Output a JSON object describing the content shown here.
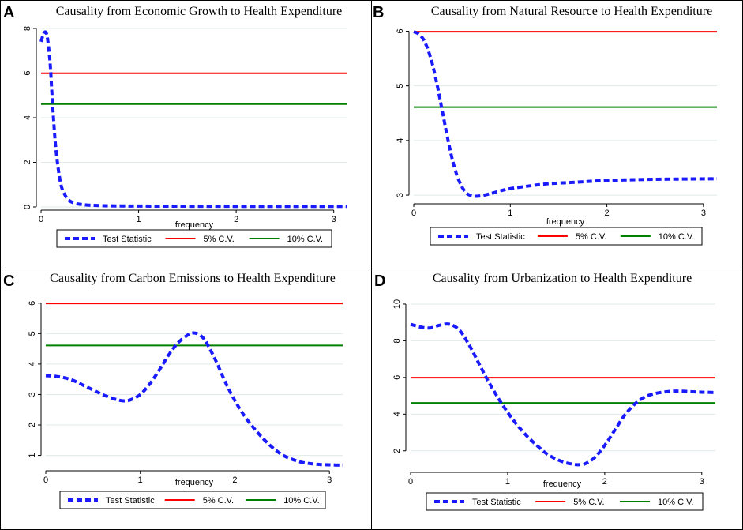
{
  "figure": {
    "colors": {
      "test_statistic": "#1a1aff",
      "cv5": "#ff0000",
      "cv10": "#008000",
      "grid": "#dfe9ea",
      "border": "#000000"
    }
  },
  "chart_data": [
    {
      "panel": "A",
      "type": "line",
      "title": "Causality from Economic Growth to Health Expenditure",
      "xlabel": "frequency",
      "ylabel": "",
      "xlim": [
        0,
        3.14
      ],
      "ylim": [
        0,
        8
      ],
      "xticks": [
        0,
        1,
        2,
        3
      ],
      "yticks": [
        0,
        2,
        4,
        6,
        8
      ],
      "legend": [
        "Test Statistic",
        "5% C.V.",
        "10% C.V."
      ],
      "series": [
        {
          "name": "Test Statistic",
          "style": "dashed",
          "x": [
            0,
            0.03,
            0.06,
            0.09,
            0.11,
            0.13,
            0.15,
            0.18,
            0.21,
            0.25,
            0.3,
            0.4,
            0.6,
            1.0,
            2.0,
            3.14
          ],
          "y": [
            7.4,
            7.8,
            7.7,
            6.6,
            5.2,
            3.8,
            2.7,
            1.6,
            0.9,
            0.5,
            0.25,
            0.12,
            0.06,
            0.04,
            0.03,
            0.03
          ]
        },
        {
          "name": "5% C.V.",
          "x": [
            0,
            3.14
          ],
          "y": [
            5.99,
            5.99
          ]
        },
        {
          "name": "10% C.V.",
          "x": [
            0,
            3.14
          ],
          "y": [
            4.61,
            4.61
          ]
        }
      ]
    },
    {
      "panel": "B",
      "type": "line",
      "title": "Causality from Natural Resource to Health Expenditure",
      "xlabel": "frequency",
      "ylabel": "",
      "xlim": [
        0,
        3.14
      ],
      "ylim": [
        2.9,
        6.05
      ],
      "xticks": [
        0,
        1,
        2,
        3
      ],
      "yticks": [
        3,
        4,
        5,
        6
      ],
      "legend": [
        "Test Statistic",
        "5% C.V.",
        "10% C.V."
      ],
      "series": [
        {
          "name": "Test Statistic",
          "style": "dashed",
          "x": [
            0,
            0.05,
            0.1,
            0.15,
            0.2,
            0.25,
            0.3,
            0.35,
            0.4,
            0.45,
            0.5,
            0.55,
            0.6,
            0.65,
            0.7,
            0.8,
            0.9,
            1.0,
            1.2,
            1.4,
            1.6,
            1.8,
            2.0,
            2.5,
            3.14
          ],
          "y": [
            5.99,
            5.95,
            5.85,
            5.65,
            5.35,
            4.95,
            4.5,
            4.05,
            3.65,
            3.35,
            3.15,
            3.03,
            2.99,
            2.98,
            2.99,
            3.03,
            3.08,
            3.12,
            3.17,
            3.21,
            3.23,
            3.25,
            3.27,
            3.29,
            3.3
          ]
        },
        {
          "name": "5% C.V.",
          "x": [
            0,
            3.14
          ],
          "y": [
            5.99,
            5.99
          ]
        },
        {
          "name": "10% C.V.",
          "x": [
            0,
            3.14
          ],
          "y": [
            4.61,
            4.61
          ]
        }
      ]
    },
    {
      "panel": "C",
      "type": "line",
      "title": "Causality from Carbon Emissions to Health Expenditure",
      "xlabel": "frequency",
      "ylabel": "",
      "xlim": [
        0,
        3.14
      ],
      "ylim": [
        0.6,
        6.15
      ],
      "xticks": [
        0,
        1,
        2,
        3
      ],
      "yticks": [
        1,
        2,
        3,
        4,
        5,
        6
      ],
      "legend": [
        "Test Statistic",
        "5% C.V.",
        "10% C.V."
      ],
      "series": [
        {
          "name": "Test Statistic",
          "style": "dashed",
          "x": [
            0,
            0.1,
            0.2,
            0.3,
            0.4,
            0.5,
            0.6,
            0.7,
            0.8,
            0.85,
            0.9,
            1.0,
            1.1,
            1.2,
            1.3,
            1.4,
            1.5,
            1.55,
            1.6,
            1.65,
            1.7,
            1.8,
            1.9,
            2.0,
            2.1,
            2.2,
            2.3,
            2.4,
            2.5,
            2.6,
            2.7,
            2.8,
            2.9,
            3.0,
            3.14
          ],
          "y": [
            3.62,
            3.6,
            3.55,
            3.45,
            3.3,
            3.15,
            3.0,
            2.88,
            2.8,
            2.8,
            2.83,
            3.0,
            3.35,
            3.8,
            4.3,
            4.7,
            4.95,
            5.02,
            5.0,
            4.9,
            4.7,
            4.1,
            3.4,
            2.8,
            2.3,
            1.9,
            1.55,
            1.25,
            1.02,
            0.88,
            0.78,
            0.73,
            0.7,
            0.69,
            0.68
          ]
        },
        {
          "name": "5% C.V.",
          "x": [
            0,
            3.14
          ],
          "y": [
            5.99,
            5.99
          ]
        },
        {
          "name": "10% C.V.",
          "x": [
            0,
            3.14
          ],
          "y": [
            4.61,
            4.61
          ]
        }
      ]
    },
    {
      "panel": "D",
      "type": "line",
      "title": "Causality from Urbanization to Health Expenditure",
      "xlabel": "frequency",
      "ylabel": "",
      "xlim": [
        0,
        3.14
      ],
      "ylim": [
        1.0,
        10.3
      ],
      "xticks": [
        0,
        1,
        2,
        3
      ],
      "yticks": [
        2,
        4,
        6,
        8,
        10
      ],
      "legend": [
        "Test Statistic",
        "5% C.V.",
        "10% C.V."
      ],
      "series": [
        {
          "name": "Test Statistic",
          "style": "dashed",
          "x": [
            0,
            0.1,
            0.2,
            0.3,
            0.4,
            0.5,
            0.6,
            0.7,
            0.8,
            0.9,
            1.0,
            1.1,
            1.2,
            1.3,
            1.4,
            1.5,
            1.6,
            1.7,
            1.75,
            1.8,
            1.9,
            2.0,
            2.1,
            2.2,
            2.3,
            2.4,
            2.5,
            2.6,
            2.7,
            2.8,
            2.9,
            3.0,
            3.14
          ],
          "y": [
            8.9,
            8.75,
            8.7,
            8.85,
            8.9,
            8.6,
            7.8,
            6.8,
            5.8,
            4.9,
            4.1,
            3.4,
            2.8,
            2.3,
            1.85,
            1.55,
            1.35,
            1.25,
            1.25,
            1.3,
            1.65,
            2.3,
            3.1,
            3.9,
            4.5,
            4.9,
            5.1,
            5.2,
            5.25,
            5.25,
            5.22,
            5.2,
            5.18
          ]
        },
        {
          "name": "5% C.V.",
          "x": [
            0,
            3.14
          ],
          "y": [
            5.99,
            5.99
          ]
        },
        {
          "name": "10% C.V.",
          "x": [
            0,
            3.14
          ],
          "y": [
            4.61,
            4.61
          ]
        }
      ]
    }
  ]
}
